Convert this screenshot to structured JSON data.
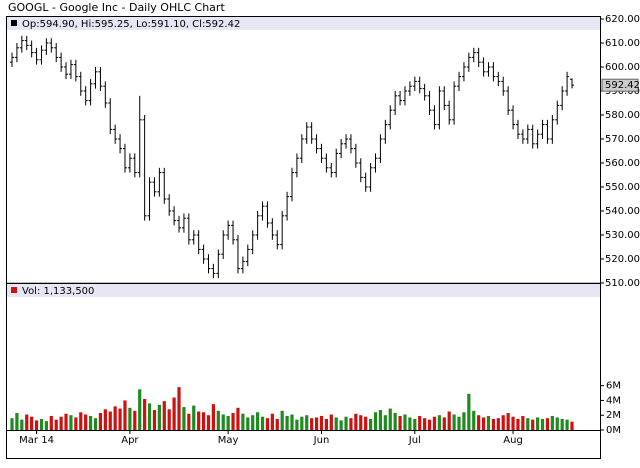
{
  "chart_data": {
    "type": "ohlc",
    "title": "GOOGL - Google Inc - Daily OHLC Chart",
    "legend_text": "Op:594.90, Hi:595.25, Lo:591.10, Cl:592.42",
    "color": "#000000",
    "categories": [
      null,
      null,
      null,
      null,
      null,
      "Mar 14",
      null,
      null,
      null,
      null,
      null,
      null,
      null,
      null,
      null,
      null,
      null,
      null,
      null,
      null,
      null,
      null,
      null,
      null,
      "Apr",
      null,
      null,
      null,
      null,
      null,
      null,
      null,
      null,
      null,
      null,
      null,
      null,
      null,
      null,
      null,
      null,
      null,
      null,
      null,
      "May",
      null,
      null,
      null,
      null,
      null,
      null,
      null,
      null,
      null,
      null,
      null,
      null,
      null,
      null,
      null,
      null,
      null,
      null,
      "Jun",
      null,
      null,
      null,
      null,
      null,
      null,
      null,
      null,
      null,
      null,
      null,
      null,
      null,
      null,
      null,
      null,
      null,
      null,
      "Jul",
      null,
      null,
      null,
      null,
      null,
      null,
      null,
      null,
      null,
      null,
      null,
      null,
      null,
      null,
      null,
      null,
      null,
      null,
      null,
      "Aug",
      null,
      null,
      null,
      null,
      null,
      null,
      null,
      null,
      null,
      null,
      null,
      null
    ],
    "open": [
      602,
      604,
      608,
      611,
      609,
      606,
      603,
      607,
      610,
      608,
      604,
      600,
      597,
      601,
      596,
      590,
      586,
      593,
      598,
      592,
      585,
      574,
      570,
      566,
      558,
      562,
      556,
      578,
      538,
      552,
      548,
      556,
      545,
      540,
      536,
      533,
      537,
      528,
      530,
      524,
      520,
      516,
      514,
      522,
      530,
      534,
      528,
      516,
      519,
      524,
      530,
      538,
      542,
      535,
      530,
      526,
      538,
      546,
      556,
      562,
      570,
      575,
      570,
      566,
      562,
      558,
      556,
      564,
      568,
      570,
      566,
      560,
      554,
      550,
      558,
      562,
      570,
      576,
      582,
      588,
      586,
      590,
      592,
      594,
      591,
      588,
      582,
      576,
      590,
      584,
      578,
      592,
      596,
      600,
      604,
      606,
      602,
      598,
      600,
      596,
      594,
      590,
      582,
      576,
      572,
      570,
      574,
      568,
      572,
      576,
      570,
      578,
      584,
      590,
      594.9
    ],
    "high": [
      606,
      610,
      613,
      613,
      611,
      608,
      609,
      612,
      612,
      610,
      606,
      602,
      603,
      603,
      598,
      592,
      595,
      600,
      600,
      594,
      587,
      576,
      572,
      568,
      564,
      564,
      588,
      580,
      554,
      554,
      558,
      558,
      547,
      542,
      538,
      539,
      539,
      532,
      532,
      526,
      522,
      518,
      524,
      532,
      536,
      536,
      530,
      521,
      526,
      532,
      540,
      544,
      544,
      537,
      532,
      540,
      548,
      558,
      564,
      572,
      577,
      577,
      572,
      568,
      564,
      560,
      566,
      570,
      572,
      572,
      568,
      562,
      556,
      560,
      564,
      572,
      578,
      584,
      590,
      590,
      592,
      594,
      596,
      596,
      593,
      590,
      584,
      592,
      592,
      586,
      594,
      598,
      602,
      606,
      608,
      608,
      604,
      602,
      602,
      598,
      596,
      592,
      584,
      578,
      574,
      576,
      576,
      574,
      578,
      578,
      580,
      586,
      592,
      598,
      595.25
    ],
    "low": [
      600,
      602,
      606,
      607,
      604,
      601,
      601,
      605,
      606,
      602,
      598,
      595,
      595,
      594,
      588,
      584,
      584,
      591,
      590,
      583,
      572,
      568,
      564,
      556,
      556,
      554,
      554,
      536,
      536,
      546,
      546,
      543,
      538,
      534,
      531,
      531,
      526,
      526,
      522,
      518,
      514,
      512,
      512,
      520,
      528,
      526,
      514,
      514,
      517,
      522,
      528,
      536,
      533,
      528,
      524,
      524,
      536,
      544,
      554,
      560,
      568,
      568,
      564,
      560,
      556,
      554,
      554,
      562,
      566,
      564,
      558,
      552,
      548,
      548,
      556,
      560,
      568,
      574,
      580,
      584,
      584,
      588,
      590,
      589,
      586,
      580,
      574,
      574,
      582,
      576,
      576,
      590,
      594,
      598,
      602,
      600,
      596,
      596,
      594,
      592,
      588,
      580,
      574,
      570,
      568,
      568,
      566,
      566,
      570,
      568,
      568,
      576,
      582,
      588,
      591.1
    ],
    "close": [
      604,
      608,
      611,
      609,
      606,
      603,
      607,
      610,
      608,
      604,
      600,
      597,
      601,
      596,
      590,
      586,
      593,
      598,
      592,
      585,
      574,
      570,
      566,
      558,
      562,
      556,
      578,
      538,
      552,
      548,
      556,
      545,
      540,
      536,
      533,
      537,
      528,
      530,
      524,
      520,
      516,
      514,
      522,
      530,
      534,
      528,
      516,
      519,
      524,
      530,
      538,
      542,
      535,
      530,
      526,
      538,
      546,
      556,
      562,
      570,
      575,
      570,
      566,
      562,
      558,
      556,
      564,
      568,
      570,
      566,
      560,
      554,
      550,
      558,
      562,
      570,
      576,
      582,
      588,
      586,
      590,
      592,
      594,
      591,
      588,
      582,
      576,
      590,
      584,
      578,
      592,
      596,
      600,
      604,
      606,
      602,
      598,
      600,
      596,
      594,
      590,
      582,
      576,
      572,
      570,
      574,
      568,
      572,
      576,
      570,
      578,
      584,
      590,
      596,
      592.42
    ],
    "ylim": [
      510,
      620
    ],
    "yticks": [
      {
        "value": 510,
        "label": "510.00"
      },
      {
        "value": 520,
        "label": "520.00"
      },
      {
        "value": 530,
        "label": "530.00"
      },
      {
        "value": 540,
        "label": "540.00"
      },
      {
        "value": 550,
        "label": "550.00"
      },
      {
        "value": 560,
        "label": "560.00"
      },
      {
        "value": 570,
        "label": "570.00"
      },
      {
        "value": 580,
        "label": "580.00"
      },
      {
        "value": 590,
        "label": "590.00"
      },
      {
        "value": 600,
        "label": "600.00"
      },
      {
        "value": 610,
        "label": "610.00"
      },
      {
        "value": 620,
        "label": "620.00"
      }
    ],
    "volume": {
      "label": "Vol: 1,133,500",
      "up_color": "#1f8a1f",
      "down_color": "#cc1111",
      "values": [
        1600000,
        2300000,
        1400000,
        2100000,
        1800000,
        1300000,
        1500000,
        1200000,
        1900000,
        1400000,
        1800000,
        2200000,
        2000000,
        1700000,
        2400000,
        2100000,
        1900000,
        1600000,
        2300000,
        2800000,
        2500000,
        3200000,
        2900000,
        4000000,
        3000000,
        2600000,
        5500000,
        4200000,
        3600000,
        2700000,
        3400000,
        3900000,
        2800000,
        4400000,
        5800000,
        3100000,
        2200000,
        3300000,
        2500000,
        2400000,
        2000000,
        3500000,
        2600000,
        2100000,
        1900000,
        2300000,
        3000000,
        2200000,
        1700000,
        2000000,
        2400000,
        1800000,
        1600000,
        2200000,
        1500000,
        2600000,
        1900000,
        2100000,
        1400000,
        1800000,
        2000000,
        1600000,
        1700000,
        1900000,
        1500000,
        2100000,
        1700000,
        1300000,
        1800000,
        1600000,
        2200000,
        2000000,
        1800000,
        1500000,
        2400000,
        2700000,
        2000000,
        2900000,
        2300000,
        1900000,
        2100000,
        1700000,
        1500000,
        1900000,
        1600000,
        1400000,
        1800000,
        2000000,
        1700000,
        2500000,
        2100000,
        1800000,
        2400000,
        4900000,
        2600000,
        2000000,
        1700000,
        1900000,
        1500000,
        1600000,
        2000000,
        2300000,
        1800000,
        1500000,
        1900000,
        1600000,
        1400000,
        1700000,
        1500000,
        1600000,
        1900000,
        1700000,
        1500000,
        1400000,
        1133500
      ],
      "ylim": [
        0,
        18000000
      ],
      "yticks": [
        {
          "value": 0,
          "label": "0M"
        },
        {
          "value": 2000000,
          "label": "2M"
        },
        {
          "value": 4000000,
          "label": "4M"
        },
        {
          "value": 6000000,
          "label": "6M"
        }
      ]
    }
  }
}
